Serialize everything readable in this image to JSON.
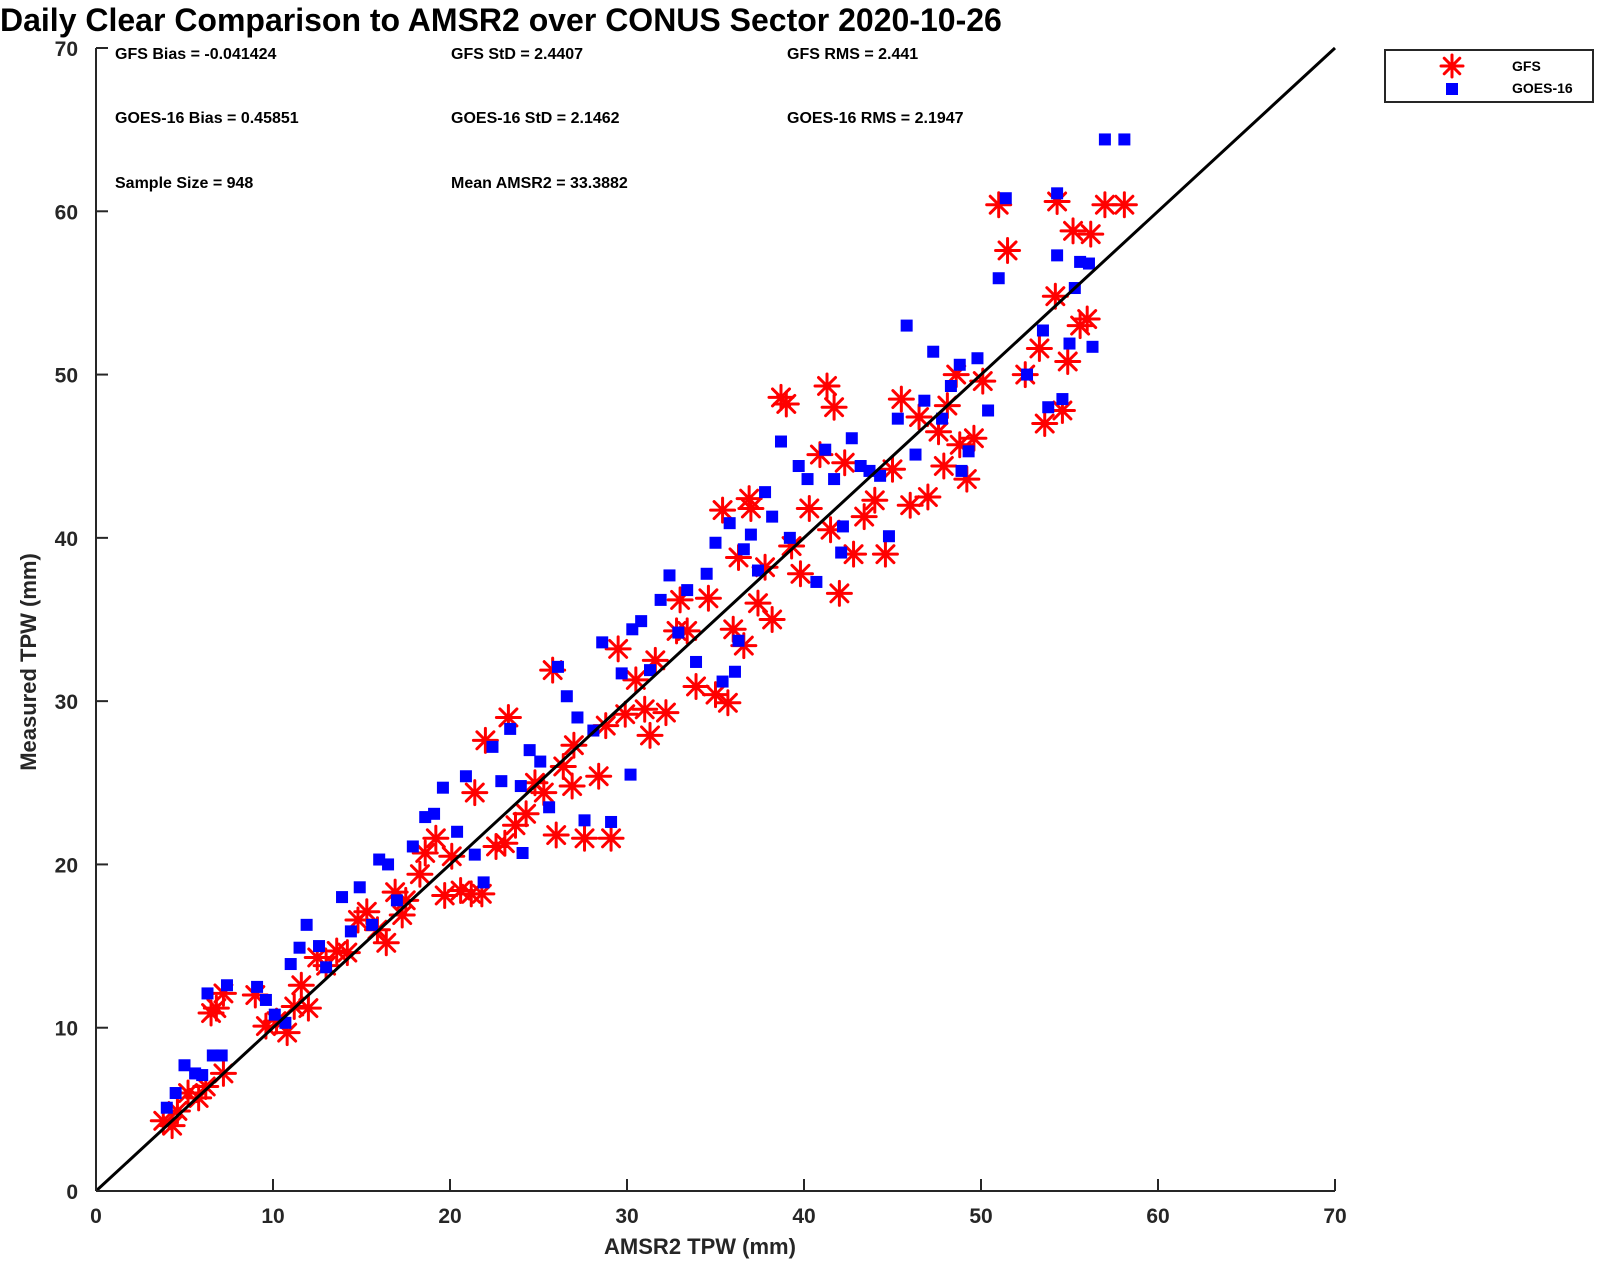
{
  "chart_data": {
    "type": "scatter",
    "title": "Daily Clear Comparison to AMSR2 over CONUS Sector 2020-10-26",
    "xlabel": "AMSR2 TPW (mm)",
    "ylabel": "Measured TPW (mm)",
    "xlim": [
      0,
      70
    ],
    "ylim": [
      0,
      70
    ],
    "xticks": [
      0,
      10,
      20,
      30,
      40,
      50,
      60,
      70
    ],
    "yticks": [
      0,
      10,
      20,
      30,
      40,
      50,
      60,
      70
    ],
    "grid": false,
    "legend_position": "outside-top-right",
    "reference_line": {
      "from": [
        0,
        0
      ],
      "to": [
        70,
        70
      ],
      "color": "#000000"
    },
    "stats": [
      {
        "text": "GFS Bias = -0.041424",
        "col": 0,
        "row": 0
      },
      {
        "text": "GFS StD = 2.4407",
        "col": 1,
        "row": 0
      },
      {
        "text": "GFS RMS = 2.441",
        "col": 2,
        "row": 0
      },
      {
        "text": "GOES-16 Bias = 0.45851",
        "col": 0,
        "row": 1
      },
      {
        "text": "GOES-16 StD = 2.1462",
        "col": 1,
        "row": 1
      },
      {
        "text": "GOES-16 RMS = 2.1947",
        "col": 2,
        "row": 1
      },
      {
        "text": "Sample Size = 948",
        "col": 0,
        "row": 2
      },
      {
        "text": "Mean AMSR2 = 33.3882",
        "col": 1,
        "row": 2
      }
    ],
    "series": [
      {
        "name": "GFS",
        "marker": "asterisk",
        "color": "#ff0000",
        "points": [
          [
            3.8,
            4.3
          ],
          [
            4.3,
            4.0
          ],
          [
            4.6,
            4.9
          ],
          [
            5.2,
            6.0
          ],
          [
            5.8,
            5.7
          ],
          [
            6.2,
            6.4
          ],
          [
            6.5,
            10.9
          ],
          [
            6.8,
            11.2
          ],
          [
            7.2,
            12.1
          ],
          [
            7.2,
            7.2
          ],
          [
            9.0,
            12.0
          ],
          [
            9.6,
            10.1
          ],
          [
            10.2,
            10.4
          ],
          [
            10.8,
            9.7
          ],
          [
            11.2,
            11.3
          ],
          [
            11.6,
            12.6
          ],
          [
            12.0,
            11.2
          ],
          [
            12.5,
            14.3
          ],
          [
            13.0,
            13.8
          ],
          [
            13.6,
            14.7
          ],
          [
            14.2,
            14.6
          ],
          [
            14.8,
            16.6
          ],
          [
            15.3,
            17.1
          ],
          [
            15.9,
            16.0
          ],
          [
            16.4,
            15.2
          ],
          [
            16.9,
            18.3
          ],
          [
            17.5,
            17.8
          ],
          [
            18.3,
            19.4
          ],
          [
            18.6,
            20.7
          ],
          [
            19.2,
            21.6
          ],
          [
            19.7,
            18.1
          ],
          [
            20.1,
            20.5
          ],
          [
            20.6,
            18.4
          ],
          [
            21.2,
            18.2
          ],
          [
            21.8,
            18.2
          ],
          [
            22.0,
            27.6
          ],
          [
            22.6,
            21.1
          ],
          [
            23.1,
            21.3
          ],
          [
            23.3,
            29.0
          ],
          [
            23.7,
            22.4
          ],
          [
            24.3,
            23.1
          ],
          [
            24.8,
            25.0
          ],
          [
            25.3,
            24.4
          ],
          [
            25.8,
            31.9
          ],
          [
            26.0,
            21.8
          ],
          [
            26.4,
            26.0
          ],
          [
            27.0,
            27.3
          ],
          [
            27.6,
            21.6
          ],
          [
            28.4,
            25.4
          ],
          [
            28.8,
            28.5
          ],
          [
            29.1,
            21.6
          ],
          [
            29.5,
            33.2
          ],
          [
            29.9,
            29.2
          ],
          [
            30.5,
            31.3
          ],
          [
            31.0,
            29.5
          ],
          [
            31.6,
            32.5
          ],
          [
            32.2,
            29.3
          ],
          [
            32.8,
            34.3
          ],
          [
            33.4,
            34.3
          ],
          [
            33.9,
            30.9
          ],
          [
            34.6,
            36.3
          ],
          [
            35.0,
            30.4
          ],
          [
            35.4,
            41.7
          ],
          [
            35.7,
            29.9
          ],
          [
            36.0,
            34.4
          ],
          [
            36.3,
            38.8
          ],
          [
            36.6,
            33.4
          ],
          [
            36.9,
            42.4
          ],
          [
            37.4,
            36.0
          ],
          [
            37.8,
            38.2
          ],
          [
            38.2,
            35.0
          ],
          [
            38.7,
            48.6
          ],
          [
            39.0,
            48.2
          ],
          [
            39.3,
            39.5
          ],
          [
            39.8,
            37.8
          ],
          [
            40.3,
            41.8
          ],
          [
            40.9,
            45.1
          ],
          [
            41.3,
            49.3
          ],
          [
            41.7,
            48.0
          ],
          [
            42.0,
            36.6
          ],
          [
            41.5,
            40.5
          ],
          [
            42.3,
            44.6
          ],
          [
            42.8,
            39.0
          ],
          [
            43.4,
            41.3
          ],
          [
            44.0,
            42.3
          ],
          [
            44.6,
            39.0
          ],
          [
            45.0,
            44.2
          ],
          [
            45.5,
            48.5
          ],
          [
            46.0,
            42.0
          ],
          [
            46.5,
            47.4
          ],
          [
            47.0,
            42.5
          ],
          [
            47.6,
            46.5
          ],
          [
            48.1,
            48.1
          ],
          [
            48.6,
            50.0
          ],
          [
            49.2,
            43.6
          ],
          [
            49.6,
            46.1
          ],
          [
            50.1,
            49.6
          ],
          [
            51.0,
            60.4
          ],
          [
            51.5,
            57.6
          ],
          [
            52.5,
            50.0
          ],
          [
            53.3,
            51.6
          ],
          [
            53.6,
            47.0
          ],
          [
            54.2,
            54.8
          ],
          [
            54.3,
            60.6
          ],
          [
            54.6,
            47.8
          ],
          [
            54.9,
            50.8
          ],
          [
            55.2,
            58.8
          ],
          [
            55.6,
            53.0
          ],
          [
            56.0,
            53.4
          ],
          [
            56.2,
            58.6
          ],
          [
            57.0,
            60.4
          ],
          [
            58.1,
            60.4
          ],
          [
            48.8,
            45.7
          ],
          [
            47.9,
            44.4
          ],
          [
            37.0,
            41.8
          ],
          [
            33.0,
            36.2
          ],
          [
            31.3,
            27.9
          ],
          [
            26.9,
            24.8
          ],
          [
            21.4,
            24.4
          ],
          [
            17.3,
            16.9
          ]
        ]
      },
      {
        "name": "GOES-16",
        "marker": "square",
        "color": "#0000ff",
        "points": [
          [
            4.0,
            5.1
          ],
          [
            4.5,
            6.0
          ],
          [
            5.0,
            7.7
          ],
          [
            5.6,
            7.2
          ],
          [
            6.0,
            7.1
          ],
          [
            6.3,
            12.1
          ],
          [
            6.6,
            8.3
          ],
          [
            7.1,
            8.3
          ],
          [
            7.4,
            12.6
          ],
          [
            9.1,
            12.5
          ],
          [
            9.6,
            11.7
          ],
          [
            10.1,
            10.8
          ],
          [
            10.7,
            10.3
          ],
          [
            11.0,
            13.9
          ],
          [
            11.5,
            14.9
          ],
          [
            11.9,
            16.3
          ],
          [
            12.6,
            15.0
          ],
          [
            13.0,
            13.7
          ],
          [
            13.9,
            18.0
          ],
          [
            14.4,
            15.9
          ],
          [
            14.9,
            18.6
          ],
          [
            15.6,
            16.3
          ],
          [
            16.0,
            20.3
          ],
          [
            16.5,
            20.0
          ],
          [
            17.0,
            17.8
          ],
          [
            17.9,
            21.1
          ],
          [
            18.6,
            22.9
          ],
          [
            19.1,
            23.1
          ],
          [
            19.6,
            24.7
          ],
          [
            20.4,
            22.0
          ],
          [
            20.9,
            25.4
          ],
          [
            21.4,
            20.6
          ],
          [
            21.9,
            18.9
          ],
          [
            22.4,
            27.2
          ],
          [
            22.9,
            25.1
          ],
          [
            23.4,
            28.3
          ],
          [
            24.0,
            24.8
          ],
          [
            24.5,
            27.0
          ],
          [
            25.1,
            26.3
          ],
          [
            25.6,
            23.5
          ],
          [
            26.1,
            32.1
          ],
          [
            26.6,
            30.3
          ],
          [
            27.2,
            29.0
          ],
          [
            27.6,
            22.7
          ],
          [
            28.1,
            28.2
          ],
          [
            28.6,
            33.6
          ],
          [
            29.1,
            22.6
          ],
          [
            29.7,
            31.7
          ],
          [
            30.3,
            34.4
          ],
          [
            30.8,
            34.9
          ],
          [
            31.3,
            31.9
          ],
          [
            31.9,
            36.2
          ],
          [
            32.4,
            37.7
          ],
          [
            32.9,
            34.2
          ],
          [
            33.4,
            36.8
          ],
          [
            33.9,
            32.4
          ],
          [
            34.5,
            37.8
          ],
          [
            35.0,
            39.7
          ],
          [
            35.4,
            31.2
          ],
          [
            35.8,
            40.9
          ],
          [
            36.1,
            31.8
          ],
          [
            36.6,
            39.3
          ],
          [
            37.0,
            40.2
          ],
          [
            37.4,
            38.0
          ],
          [
            37.8,
            42.8
          ],
          [
            38.2,
            41.3
          ],
          [
            38.7,
            45.9
          ],
          [
            39.2,
            40.0
          ],
          [
            39.7,
            44.4
          ],
          [
            40.2,
            43.6
          ],
          [
            40.7,
            37.3
          ],
          [
            41.2,
            45.4
          ],
          [
            41.7,
            43.6
          ],
          [
            42.2,
            40.7
          ],
          [
            42.7,
            46.1
          ],
          [
            43.2,
            44.4
          ],
          [
            43.7,
            44.1
          ],
          [
            44.3,
            43.8
          ],
          [
            44.8,
            40.1
          ],
          [
            45.3,
            47.3
          ],
          [
            45.8,
            53.0
          ],
          [
            46.3,
            45.1
          ],
          [
            46.8,
            48.4
          ],
          [
            47.3,
            51.4
          ],
          [
            47.8,
            47.3
          ],
          [
            48.3,
            49.3
          ],
          [
            48.8,
            50.6
          ],
          [
            49.3,
            45.3
          ],
          [
            49.8,
            51.0
          ],
          [
            50.4,
            47.8
          ],
          [
            51.0,
            55.9
          ],
          [
            51.4,
            60.8
          ],
          [
            52.6,
            50.0
          ],
          [
            53.5,
            52.7
          ],
          [
            53.8,
            48.0
          ],
          [
            54.3,
            57.3
          ],
          [
            54.3,
            61.1
          ],
          [
            54.6,
            48.5
          ],
          [
            55.0,
            51.9
          ],
          [
            55.3,
            55.3
          ],
          [
            55.6,
            56.9
          ],
          [
            56.1,
            56.8
          ],
          [
            56.3,
            51.7
          ],
          [
            57.0,
            64.4
          ],
          [
            58.1,
            64.4
          ],
          [
            48.9,
            44.1
          ],
          [
            42.1,
            39.1
          ],
          [
            36.3,
            33.7
          ],
          [
            30.2,
            25.5
          ],
          [
            24.1,
            20.7
          ]
        ]
      }
    ]
  }
}
